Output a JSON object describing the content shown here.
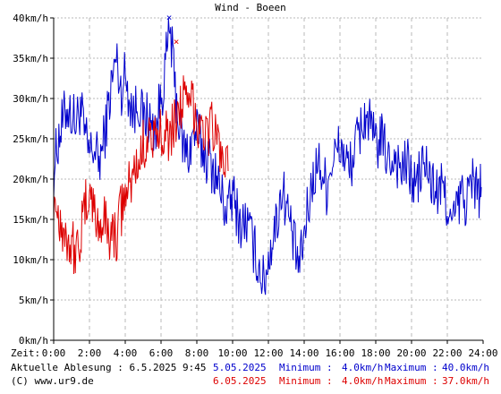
{
  "chart_data": {
    "type": "line",
    "title": "Wind - Boeen",
    "x_axis_label": "Zeit:",
    "x_range": [
      0,
      24
    ],
    "x_ticks": [
      "0:00",
      "2:00",
      "4:00",
      "6:00",
      "8:00",
      "10:00",
      "12:00",
      "14:00",
      "16:00",
      "18:00",
      "20:00",
      "22:00",
      "24:00"
    ],
    "y_range": [
      0,
      40
    ],
    "y_unit": "km/h",
    "y_ticks": [
      "0km/h",
      "5km/h",
      "10km/h",
      "15km/h",
      "20km/h",
      "25km/h",
      "30km/h",
      "35km/h",
      "40km/h"
    ],
    "grid": true,
    "series": [
      {
        "name": "5.05.2025",
        "color": "#0000cc",
        "marker_max": {
          "x": 6.45,
          "y": 40.0
        },
        "points": [
          [
            0.0,
            21.0
          ],
          [
            0.25,
            25.0
          ],
          [
            0.5,
            27.0
          ],
          [
            0.75,
            29.0
          ],
          [
            1.0,
            28.0
          ],
          [
            1.25,
            27.0
          ],
          [
            1.5,
            29.0
          ],
          [
            1.75,
            25.0
          ],
          [
            2.0,
            23.0
          ],
          [
            2.25,
            24.0
          ],
          [
            2.5,
            22.0
          ],
          [
            2.75,
            24.0
          ],
          [
            3.0,
            28.0
          ],
          [
            3.25,
            32.0
          ],
          [
            3.5,
            35.0
          ],
          [
            3.75,
            31.0
          ],
          [
            4.0,
            33.0
          ],
          [
            4.25,
            30.0
          ],
          [
            4.5,
            28.0
          ],
          [
            4.75,
            30.0
          ],
          [
            5.0,
            27.0
          ],
          [
            5.25,
            28.0
          ],
          [
            5.5,
            26.0
          ],
          [
            5.75,
            27.0
          ],
          [
            6.0,
            30.0
          ],
          [
            6.25,
            34.0
          ],
          [
            6.5,
            39.0
          ],
          [
            6.75,
            32.0
          ],
          [
            7.0,
            27.0
          ],
          [
            7.25,
            24.0
          ],
          [
            7.5,
            23.0
          ],
          [
            7.75,
            25.0
          ],
          [
            8.0,
            26.0
          ],
          [
            8.25,
            24.0
          ],
          [
            8.5,
            23.0
          ],
          [
            8.75,
            22.0
          ],
          [
            9.0,
            21.0
          ],
          [
            9.25,
            19.0
          ],
          [
            9.5,
            17.0
          ],
          [
            9.75,
            16.0
          ],
          [
            10.0,
            18.0
          ],
          [
            10.25,
            16.0
          ],
          [
            10.5,
            14.0
          ],
          [
            10.75,
            15.0
          ],
          [
            11.0,
            13.0
          ],
          [
            11.25,
            11.0
          ],
          [
            11.5,
            9.0
          ],
          [
            11.75,
            7.0
          ],
          [
            12.0,
            10.0
          ],
          [
            12.25,
            13.0
          ],
          [
            12.5,
            15.0
          ],
          [
            12.75,
            19.0
          ],
          [
            13.0,
            17.0
          ],
          [
            13.25,
            14.0
          ],
          [
            13.5,
            11.0
          ],
          [
            13.75,
            9.0
          ],
          [
            14.0,
            13.0
          ],
          [
            14.25,
            17.0
          ],
          [
            14.5,
            20.0
          ],
          [
            14.75,
            22.0
          ],
          [
            15.0,
            21.0
          ],
          [
            15.25,
            19.0
          ],
          [
            15.5,
            22.0
          ],
          [
            15.75,
            23.0
          ],
          [
            16.0,
            24.0
          ],
          [
            16.25,
            23.0
          ],
          [
            16.5,
            21.0
          ],
          [
            16.75,
            23.0
          ],
          [
            17.0,
            25.0
          ],
          [
            17.25,
            27.0
          ],
          [
            17.5,
            28.0
          ],
          [
            17.75,
            26.0
          ],
          [
            18.0,
            24.0
          ],
          [
            18.25,
            25.0
          ],
          [
            18.5,
            24.0
          ],
          [
            18.75,
            22.0
          ],
          [
            19.0,
            23.0
          ],
          [
            19.25,
            22.0
          ],
          [
            19.5,
            21.0
          ],
          [
            19.75,
            22.0
          ],
          [
            20.0,
            20.0
          ],
          [
            20.25,
            19.0
          ],
          [
            20.5,
            21.0
          ],
          [
            20.75,
            22.0
          ],
          [
            21.0,
            20.0
          ],
          [
            21.25,
            19.0
          ],
          [
            21.5,
            18.0
          ],
          [
            21.75,
            19.0
          ],
          [
            22.0,
            17.0
          ],
          [
            22.25,
            14.0
          ],
          [
            22.5,
            16.0
          ],
          [
            22.75,
            18.0
          ],
          [
            23.0,
            17.0
          ],
          [
            23.25,
            19.0
          ],
          [
            23.5,
            20.0
          ],
          [
            23.75,
            18.0
          ],
          [
            23.9,
            19.0
          ]
        ]
      },
      {
        "name": "6.05.2025",
        "color": "#dd0000",
        "marker_max": {
          "x": 6.85,
          "y": 37.0
        },
        "points": [
          [
            0.0,
            18.0
          ],
          [
            0.25,
            16.0
          ],
          [
            0.5,
            14.0
          ],
          [
            0.75,
            13.0
          ],
          [
            1.0,
            12.0
          ],
          [
            1.25,
            11.0
          ],
          [
            1.5,
            13.0
          ],
          [
            1.75,
            16.0
          ],
          [
            2.0,
            19.0
          ],
          [
            2.25,
            16.0
          ],
          [
            2.5,
            14.0
          ],
          [
            2.75,
            15.0
          ],
          [
            3.0,
            14.0
          ],
          [
            3.25,
            13.0
          ],
          [
            3.5,
            13.0
          ],
          [
            3.75,
            16.0
          ],
          [
            4.0,
            18.0
          ],
          [
            4.25,
            19.0
          ],
          [
            4.5,
            21.0
          ],
          [
            4.75,
            22.0
          ],
          [
            5.0,
            24.0
          ],
          [
            5.25,
            26.0
          ],
          [
            5.5,
            25.0
          ],
          [
            5.75,
            24.0
          ],
          [
            6.0,
            26.0
          ],
          [
            6.25,
            27.0
          ],
          [
            6.5,
            25.0
          ],
          [
            6.75,
            27.0
          ],
          [
            7.0,
            29.0
          ],
          [
            7.25,
            30.0
          ],
          [
            7.5,
            28.0
          ],
          [
            7.75,
            30.0
          ],
          [
            8.0,
            27.0
          ],
          [
            8.25,
            28.0
          ],
          [
            8.5,
            25.0
          ],
          [
            8.75,
            27.0
          ],
          [
            9.0,
            26.0
          ],
          [
            9.25,
            24.0
          ],
          [
            9.5,
            22.0
          ],
          [
            9.75,
            21.0
          ]
        ]
      }
    ]
  },
  "footer": {
    "current_reading": "Aktuelle Ablesung : 6.5.2025 9:45",
    "copyright": "(C) www.ur9.de",
    "min_label": "Minimum :",
    "max_label": "Maximum :",
    "rows": [
      {
        "date": "5.05.2025",
        "min": "4.0km/h",
        "max": "40.0km/h",
        "color": "#0000cc"
      },
      {
        "date": "6.05.2025",
        "min": "4.0km/h",
        "max": "37.0km/h",
        "color": "#dd0000"
      }
    ]
  }
}
